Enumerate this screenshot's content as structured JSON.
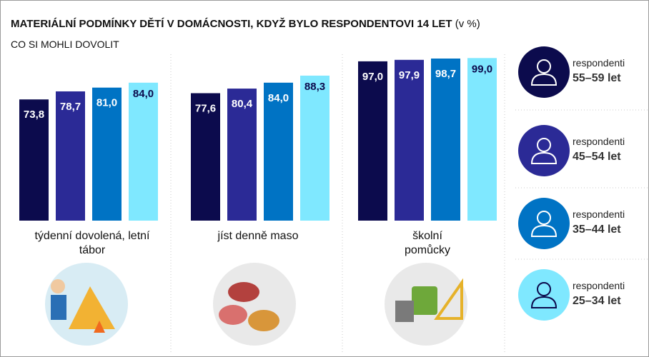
{
  "chart_data": {
    "type": "bar",
    "title": "MATERIÁLNÍ PODMÍNKY DĚTÍ V DOMÁCNOSTI, KDYŽ BYLO RESPONDENTOVI 14 LET",
    "title_unit": "(v %)",
    "subtitle": "CO SI MOHLI DOVOLIT",
    "categories": [
      "týdenní dovolená, letní tábor",
      "jíst denně maso",
      "školní pomůcky"
    ],
    "legend_label": "respondenti",
    "ylim": [
      0,
      100
    ],
    "series": [
      {
        "name": "55–59 let",
        "color": "#0c0b4d",
        "values": [
          73.8,
          77.6,
          97.0
        ],
        "value_labels": [
          "73,8",
          "77,6",
          "97,0"
        ]
      },
      {
        "name": "45–54 let",
        "color": "#2b2a96",
        "values": [
          78.7,
          80.4,
          97.9
        ],
        "value_labels": [
          "78,7",
          "80,4",
          "97,9"
        ]
      },
      {
        "name": "35–44 let",
        "color": "#0073c4",
        "values": [
          81.0,
          84.0,
          98.7
        ],
        "value_labels": [
          "81,0",
          "84,0",
          "98,7"
        ]
      },
      {
        "name": "25–34 let",
        "color": "#7fe8ff",
        "values": [
          84.0,
          88.3,
          99.0
        ],
        "value_labels": [
          "84,0",
          "88,3",
          "99,0"
        ]
      }
    ]
  }
}
